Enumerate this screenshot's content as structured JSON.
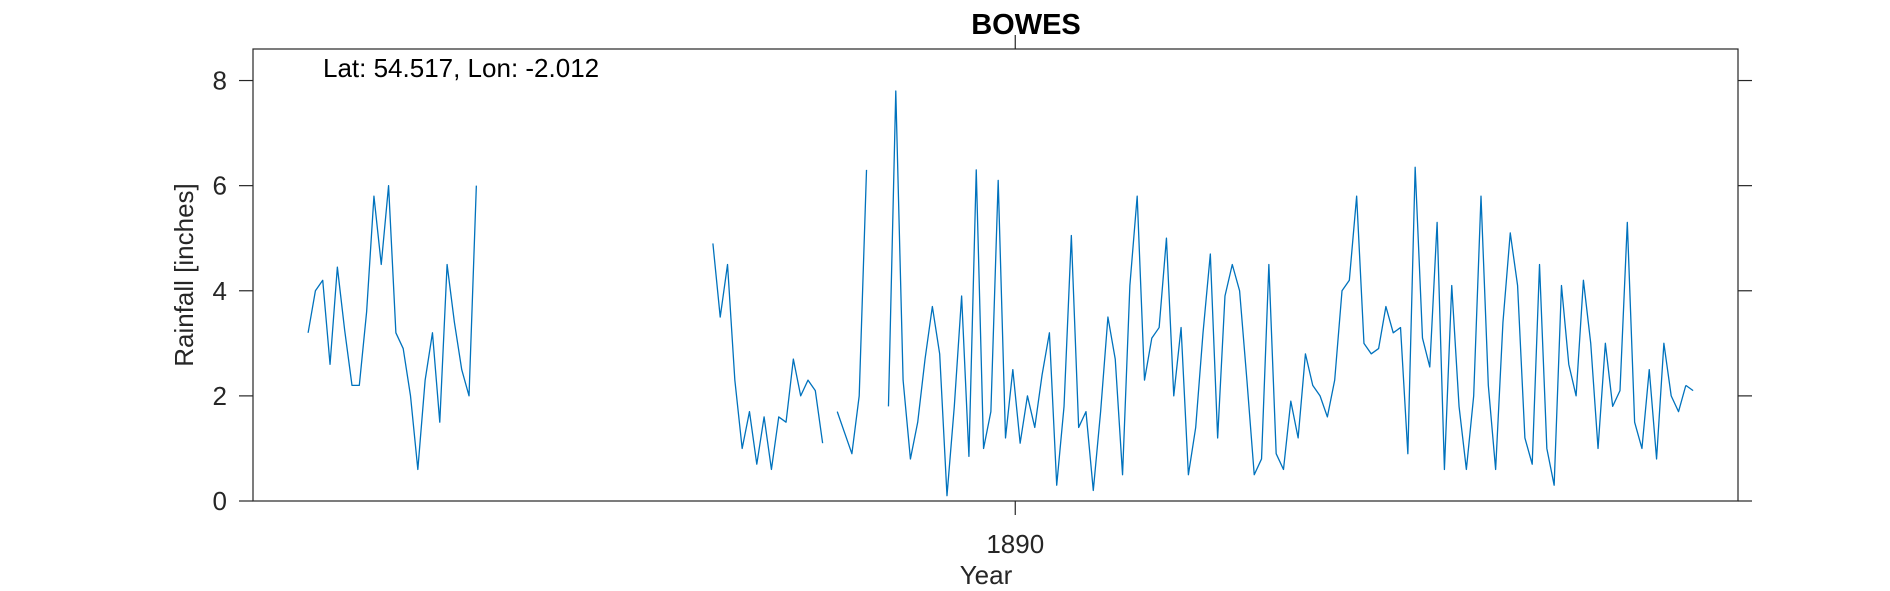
{
  "chart_data": {
    "type": "line",
    "title": "BOWES",
    "xlabel": "Year",
    "ylabel": "Rainfall [inches]",
    "annotation": "Lat: 54.517, Lon: -2.012",
    "xlim": [
      1863.95,
      1914.7
    ],
    "ylim": [
      0,
      8.6
    ],
    "yticks": [
      0,
      2,
      4,
      6,
      8
    ],
    "xticks": [
      1890
    ],
    "ytick_labels": [
      "0",
      "2",
      "4",
      "6",
      "8"
    ],
    "xtick_labels": [
      "1890"
    ],
    "grid": false,
    "series": [
      {
        "color": "#0072BD",
        "segments": [
          {
            "x": [
              1865.833,
              1866.083,
              1866.333,
              1866.583,
              1866.833,
              1867.083,
              1867.333,
              1867.583,
              1867.833,
              1868.083,
              1868.333,
              1868.583,
              1868.833,
              1869.083,
              1869.333,
              1869.583,
              1869.833,
              1870.083,
              1870.333,
              1870.583,
              1870.833,
              1871.083,
              1871.333,
              1871.583
            ],
            "y": [
              3.2,
              4.0,
              4.2,
              2.6,
              4.45,
              3.25,
              2.2,
              2.2,
              3.6,
              5.8,
              4.5,
              6.0,
              3.2,
              2.9,
              2.0,
              0.6,
              2.3,
              3.2,
              1.5,
              4.5,
              3.4,
              2.5,
              2.0,
              6.0
            ]
          },
          {
            "x": [
              1879.667,
              1879.917,
              1880.167,
              1880.417,
              1880.667,
              1880.917,
              1881.167,
              1881.417,
              1881.667,
              1881.917,
              1882.167,
              1882.417,
              1882.667,
              1882.917,
              1883.167,
              1883.417
            ],
            "y": [
              4.9,
              3.5,
              4.5,
              2.3,
              1.0,
              1.7,
              0.7,
              1.6,
              0.6,
              1.6,
              1.5,
              2.7,
              2.0,
              2.3,
              2.1,
              1.1
            ]
          },
          {
            "x": [
              1883.917,
              1884.167,
              1884.417,
              1884.667,
              1884.917
            ],
            "y": [
              1.7,
              1.3,
              0.9,
              2.0,
              6.3
            ]
          },
          {
            "x": [
              1885.667,
              1885.917,
              1886.167,
              1886.417,
              1886.667,
              1886.917,
              1887.167,
              1887.417,
              1887.667,
              1887.917,
              1888.167,
              1888.417,
              1888.667,
              1888.917,
              1889.167,
              1889.417,
              1889.667,
              1889.917,
              1890.167,
              1890.417,
              1890.667,
              1890.917,
              1891.167,
              1891.417,
              1891.667,
              1891.917,
              1892.167,
              1892.417,
              1892.667,
              1892.917,
              1893.167,
              1893.417,
              1893.667,
              1893.917,
              1894.167,
              1894.417,
              1894.667,
              1894.917,
              1895.167,
              1895.417,
              1895.667,
              1895.917,
              1896.167,
              1896.417,
              1896.667,
              1896.917,
              1897.167,
              1897.417,
              1897.667,
              1897.917,
              1898.167,
              1898.417,
              1898.667,
              1898.917,
              1899.167,
              1899.417,
              1899.667,
              1899.917,
              1900.167,
              1900.417,
              1900.667,
              1900.917,
              1901.167,
              1901.417,
              1901.667,
              1901.917,
              1902.167,
              1902.417,
              1902.667,
              1902.917,
              1903.167,
              1903.417,
              1903.667,
              1903.917,
              1904.167,
              1904.417,
              1904.667,
              1904.917,
              1905.167,
              1905.417,
              1905.667,
              1905.917,
              1906.167,
              1906.417,
              1906.667,
              1906.917,
              1907.167,
              1907.417,
              1907.667,
              1907.917,
              1908.167,
              1908.417,
              1908.667,
              1908.917,
              1909.167,
              1909.417,
              1909.667,
              1909.917,
              1910.167,
              1910.417,
              1910.667,
              1910.917,
              1911.167,
              1911.417,
              1911.667,
              1911.917,
              1912.167,
              1912.417,
              1912.667,
              1912.917
            ],
            "y": [
              1.8,
              7.8,
              2.3,
              0.8,
              1.5,
              2.7,
              3.7,
              2.8,
              0.1,
              1.8,
              3.9,
              0.85,
              6.3,
              1.0,
              1.7,
              6.1,
              1.2,
              2.5,
              1.1,
              2.0,
              1.4,
              2.4,
              3.2,
              0.3,
              1.8,
              5.05,
              1.4,
              1.7,
              0.2,
              1.7,
              3.5,
              2.7,
              0.5,
              4.1,
              5.8,
              2.3,
              3.1,
              3.3,
              5.0,
              2.0,
              3.3,
              0.5,
              1.4,
              3.2,
              4.7,
              1.2,
              3.9,
              4.5,
              4.0,
              2.3,
              0.5,
              0.8,
              4.5,
              0.9,
              0.6,
              1.9,
              1.2,
              2.8,
              2.2,
              2.0,
              1.6,
              2.3,
              4.0,
              4.2,
              5.8,
              3.0,
              2.8,
              2.9,
              3.7,
              3.2,
              3.3,
              0.9,
              6.35,
              3.1,
              2.55,
              5.3,
              0.6,
              4.1,
              1.8,
              0.6,
              2.0,
              5.8,
              2.2,
              0.6,
              3.4,
              5.1,
              4.1,
              1.2,
              0.7,
              4.5,
              1.0,
              0.3,
              4.1,
              2.6,
              2.0,
              4.2,
              3.0,
              1.0,
              3.0,
              1.8,
              2.1,
              5.3,
              1.5,
              1.0,
              2.5,
              0.8,
              3.0,
              2.0,
              1.7,
              2.2
            ]
          },
          {
            "x": [
              1912.917,
              1913.167
            ],
            "y": [
              2.2,
              2.1
            ]
          }
        ]
      }
    ]
  }
}
